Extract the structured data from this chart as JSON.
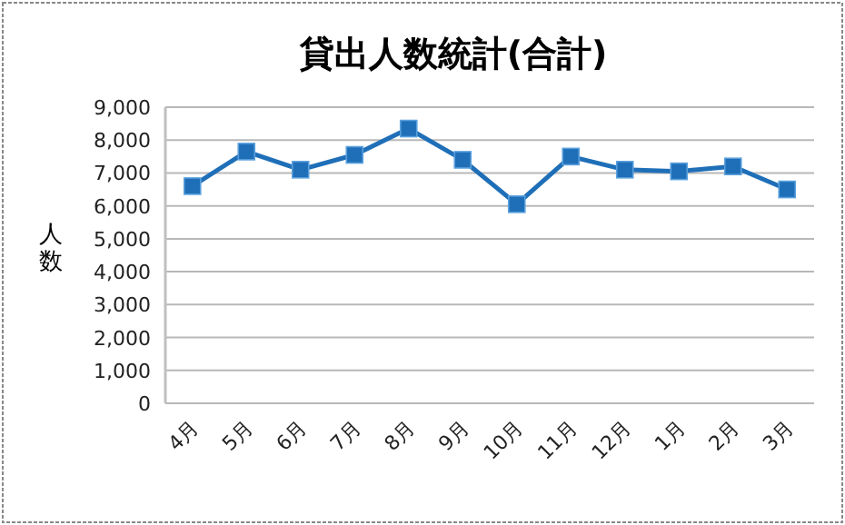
{
  "chart_data": {
    "type": "line",
    "title": "貸出人数統計(合計)",
    "ylabel": "人数",
    "categories": [
      "4月",
      "5月",
      "6月",
      "7月",
      "8月",
      "9月",
      "10月",
      "11月",
      "12月",
      "1月",
      "2月",
      "3月"
    ],
    "series": [
      {
        "color": "#1f6fb8",
        "values": [
          6600,
          7650,
          7100,
          7550,
          8350,
          7400,
          6050,
          7500,
          7100,
          7050,
          7200,
          6500
        ]
      }
    ],
    "ylim": [
      0,
      9000
    ],
    "yticks": [
      {
        "value": 0,
        "label": "0"
      },
      {
        "value": 1000,
        "label": "1,000"
      },
      {
        "value": 2000,
        "label": "2,000"
      },
      {
        "value": 3000,
        "label": "3,000"
      },
      {
        "value": 4000,
        "label": "4,000"
      },
      {
        "value": 5000,
        "label": "5,000"
      },
      {
        "value": 6000,
        "label": "6,000"
      },
      {
        "value": 7000,
        "label": "7,000"
      },
      {
        "value": 8000,
        "label": "8,000"
      },
      {
        "value": 9000,
        "label": "9,000"
      }
    ],
    "grid": "y",
    "marker": "square",
    "line_style": "solid"
  }
}
